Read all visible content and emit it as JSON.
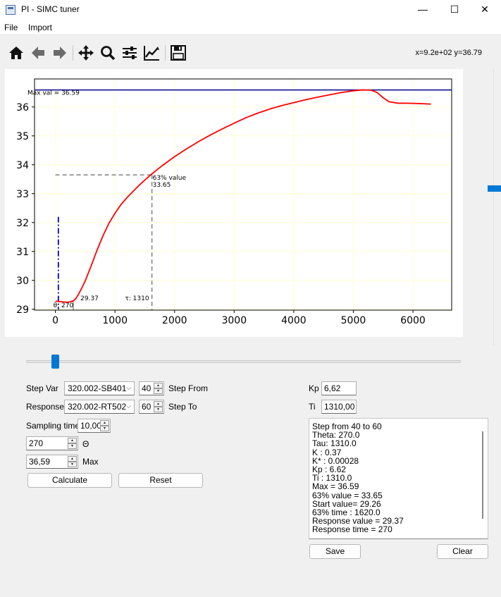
{
  "window": {
    "title": "PI - SIMC tuner",
    "controls": [
      "minimize",
      "maximize",
      "close"
    ]
  },
  "menu": {
    "items": [
      "File",
      "Import"
    ]
  },
  "toolbar": {
    "buttons": [
      "home-icon",
      "back-icon",
      "forward-icon",
      "pan-icon",
      "zoom-icon",
      "configure-subplots-icon",
      "edit-axis-icon",
      "save-figure-icon"
    ],
    "coords": "x=9.2e+02 y=36.79"
  },
  "chart_data": {
    "type": "line",
    "xlim": [
      -350,
      6650
    ],
    "ylim": [
      28.97,
      36.97
    ],
    "xticks": [
      0,
      1000,
      2000,
      3000,
      4000,
      5000,
      6000
    ],
    "yticks": [
      29,
      30,
      31,
      32,
      33,
      34,
      35,
      36
    ],
    "grid": true,
    "series": [
      {
        "color": "#ff0000",
        "x": [
          0,
          50,
          100,
          150,
          200,
          250,
          300,
          340,
          380,
          430,
          500,
          600,
          700,
          800,
          900,
          1000,
          1100,
          1200,
          1300,
          1400,
          1500,
          1600,
          1700,
          1800,
          2000,
          2200,
          2400,
          2600,
          2800,
          3000,
          3200,
          3400,
          3600,
          3800,
          4000,
          4200,
          4400,
          4600,
          4800,
          5000,
          5150,
          5300,
          5400,
          5500,
          5600,
          5750,
          5900,
          6100,
          6300
        ],
        "y": [
          29.28,
          29.27,
          29.26,
          29.25,
          29.24,
          29.26,
          29.29,
          29.36,
          29.49,
          29.68,
          29.98,
          30.5,
          31.05,
          31.55,
          31.98,
          32.32,
          32.62,
          32.86,
          33.07,
          33.28,
          33.47,
          33.65,
          33.82,
          33.98,
          34.28,
          34.55,
          34.8,
          35.03,
          35.24,
          35.44,
          35.63,
          35.79,
          35.93,
          36.05,
          36.15,
          36.25,
          36.34,
          36.42,
          36.5,
          36.56,
          36.59,
          36.58,
          36.5,
          36.32,
          36.18,
          36.13,
          36.13,
          36.12,
          36.1
        ]
      }
    ],
    "max_line": {
      "y": 36.59,
      "color": "#00008b"
    },
    "theta_line": {
      "x": 50,
      "y_range": [
        29.0,
        32.2
      ],
      "color": "#0000cd"
    },
    "ref_63": {
      "x": 1620,
      "y": 33.65
    },
    "annotations": {
      "max": "Max val = 36.59",
      "value63_title": "63% value",
      "value63": "33.65",
      "theta": "θ: 270",
      "response": "29.37",
      "tau": "τ: 1310"
    }
  },
  "controls": {
    "step_var_label": "Step Var",
    "step_var_value": "320.002-SB401",
    "step_from_value": "40",
    "step_from_label": "Step From",
    "response_label": "Response",
    "response_value": "320.002-RT502",
    "step_to_value": "60",
    "step_to_label": "Step To",
    "sampling_label": "Sampling time",
    "sampling_value": "10,00",
    "theta_value": "270",
    "theta_label": "Θ",
    "max_value": "36,59",
    "max_label": "Max",
    "calculate_label": "Calculate",
    "reset_label": "Reset"
  },
  "params": {
    "kp_label": "Kp",
    "kp_value": "6,62",
    "ti_label": "Ti",
    "ti_value": "1310,00"
  },
  "log": {
    "lines": [
      "Step from 40 to 60",
      "Theta: 270.0",
      "Tau: 1310.0",
      "K : 0.37",
      "K* : 0.00028",
      "Kp : 6.62",
      " Ti : 1310.0",
      "Max = 36.59",
      "63% value = 33.65",
      "Start value= 29.26",
      "63% time : 1620.0",
      "Response value = 29.37",
      "Response time = 270"
    ],
    "save_label": "Save",
    "clear_label": "Clear"
  },
  "slider": {
    "value": 0.04
  }
}
